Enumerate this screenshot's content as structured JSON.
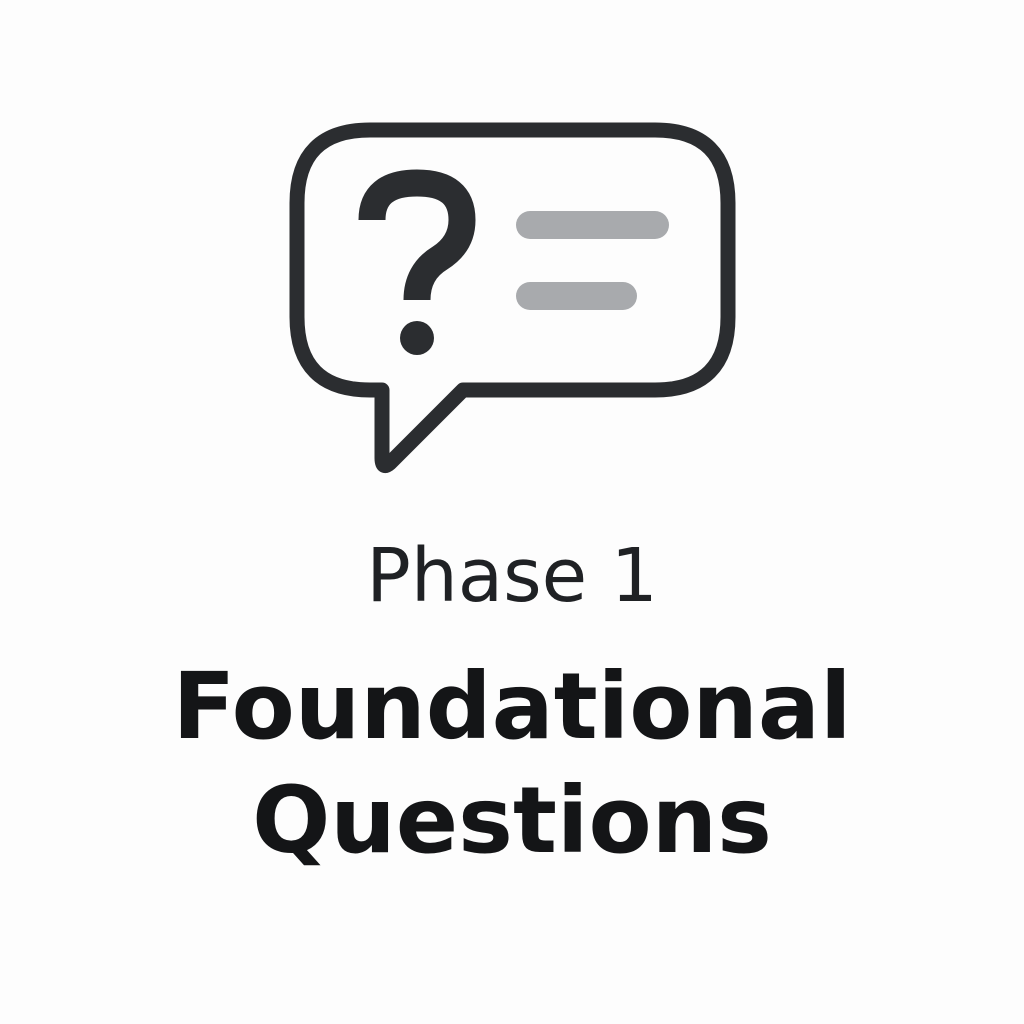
{
  "icon": {
    "name": "question-speech-bubble-icon",
    "outline_color": "#2b2d30",
    "line_color": "#a8aaad"
  },
  "phase_label": "Phase 1",
  "title": {
    "line1": "Foundational",
    "line2": "Questions"
  }
}
